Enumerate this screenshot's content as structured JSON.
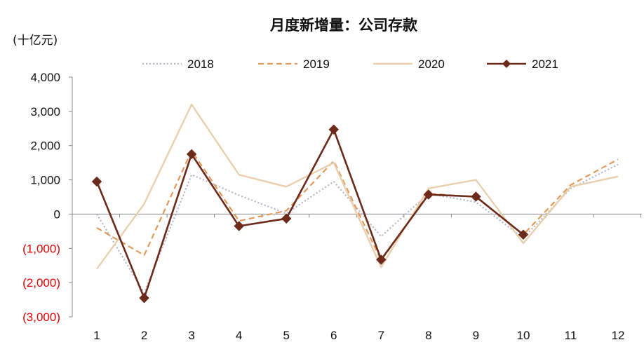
{
  "chart_data": {
    "type": "line",
    "title": "月度新增量：公司存款",
    "unit_label": "(十亿元)",
    "xlabel": "",
    "ylabel": "",
    "categories": [
      "1",
      "2",
      "3",
      "4",
      "5",
      "6",
      "7",
      "8",
      "9",
      "10",
      "11",
      "12"
    ],
    "ylim": [
      -3000,
      4000
    ],
    "yticks": [
      4000,
      3000,
      2000,
      1000,
      0,
      -1000,
      -2000,
      -3000
    ],
    "ytick_labels": [
      "4,000",
      "3,000",
      "2,000",
      "1,000",
      "0",
      "(1,000)",
      "(2,000)",
      "(3,000)"
    ],
    "negative_tick_color": "#e00000",
    "grid": false,
    "legend_position": "top",
    "series": [
      {
        "name": "2018",
        "style": "dotted",
        "color": "#b4b4c8",
        "values": [
          0,
          -2300,
          1150,
          550,
          20,
          950,
          -650,
          600,
          350,
          -700,
          750,
          1450
        ]
      },
      {
        "name": "2019",
        "style": "dashed",
        "color": "#e09a5a",
        "values": [
          -400,
          -1200,
          1850,
          -200,
          100,
          1550,
          -1350,
          600,
          500,
          -600,
          850,
          1600
        ]
      },
      {
        "name": "2020",
        "style": "solid",
        "color": "#e8cfae",
        "values": [
          -1600,
          300,
          3200,
          1150,
          800,
          1500,
          -1550,
          750,
          1000,
          -850,
          800,
          1100
        ]
      },
      {
        "name": "2021",
        "style": "solid-diamond",
        "color": "#6b2a1a",
        "values": [
          950,
          -2450,
          1750,
          -350,
          -130,
          2470,
          -1330,
          570,
          510,
          -600,
          null,
          null
        ]
      }
    ]
  }
}
